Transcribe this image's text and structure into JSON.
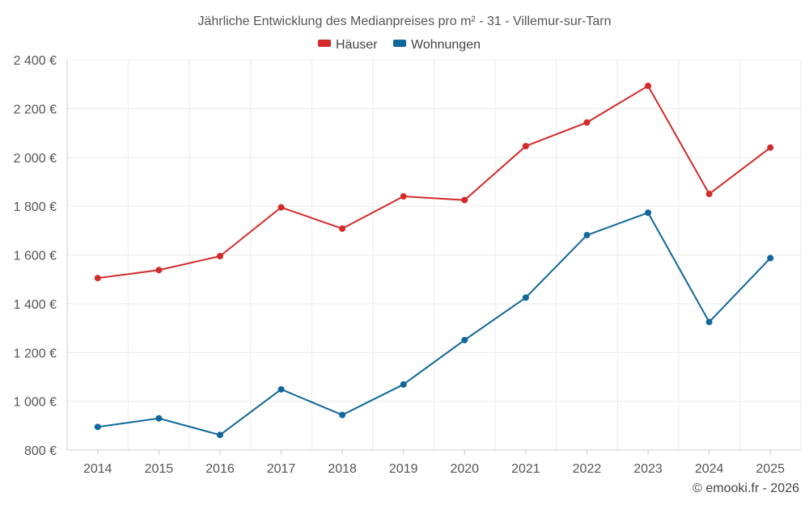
{
  "chart_data": {
    "type": "line",
    "title": "Jährliche Entwicklung des Medianpreises pro m² - 31 - Villemur-sur-Tarn",
    "categories": [
      "2014",
      "2015",
      "2016",
      "2017",
      "2018",
      "2019",
      "2020",
      "2021",
      "2022",
      "2023",
      "2024",
      "2025"
    ],
    "ylim": [
      800,
      2400
    ],
    "yticks": [
      800,
      1000,
      1200,
      1400,
      1600,
      1800,
      2000,
      2200,
      2400
    ],
    "ytick_labels": [
      "800 €",
      "1 000 €",
      "1 200 €",
      "1 400 €",
      "1 600 €",
      "1 800 €",
      "2 000 €",
      "2 200 €",
      "2 400 €"
    ],
    "grid": true,
    "legend_position": "top-center",
    "series": [
      {
        "name": "Häuser",
        "color": "#d32a2a",
        "values": [
          1505,
          1538,
          1595,
          1795,
          1708,
          1840,
          1825,
          2046,
          2143,
          2293,
          1850,
          2040
        ]
      },
      {
        "name": "Wohnungen",
        "color": "#0f679b",
        "values": [
          895,
          930,
          862,
          1049,
          944,
          1069,
          1251,
          1425,
          1681,
          1773,
          1325,
          1587
        ]
      }
    ]
  },
  "credit": "© emooki.fr - 2026"
}
